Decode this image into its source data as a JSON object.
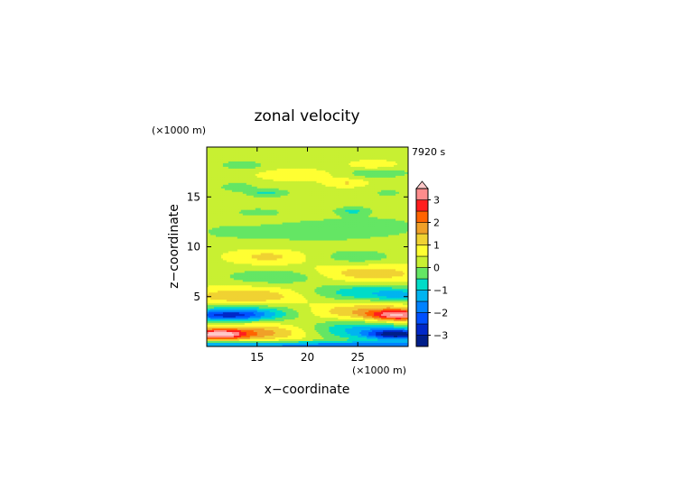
{
  "chart_data": {
    "type": "heatmap",
    "title": "zonal velocity",
    "time_label": "7920 s",
    "xlabel": "x−coordinate",
    "ylabel": "z−coordinate",
    "x_unit": "(×1000 m)",
    "y_unit": "(×1000 m)",
    "xlim": [
      10,
      30
    ],
    "ylim": [
      0,
      20
    ],
    "x_ticks": [
      15,
      20,
      25
    ],
    "y_ticks": [
      5,
      10,
      15
    ],
    "colorbar": {
      "min": -3.5,
      "max": 3.5,
      "tick_values": [
        3,
        2,
        1,
        0,
        -1,
        -2,
        -3
      ],
      "tick_labels": [
        "3",
        "2",
        "1",
        "0",
        "−1",
        "−2",
        "−3"
      ],
      "extend": "max",
      "levels": [
        {
          "from": -3.5,
          "to": -3.0,
          "color": "#001e8a"
        },
        {
          "from": -3.0,
          "to": -2.5,
          "color": "#0028c8"
        },
        {
          "from": -2.5,
          "to": -2.0,
          "color": "#0050ff"
        },
        {
          "from": -2.0,
          "to": -1.5,
          "color": "#0082ff"
        },
        {
          "from": -1.5,
          "to": -1.0,
          "color": "#00b4f0"
        },
        {
          "from": -1.0,
          "to": -0.5,
          "color": "#00dcc8"
        },
        {
          "from": -0.5,
          "to": 0.0,
          "color": "#64e664"
        },
        {
          "from": 0.0,
          "to": 0.5,
          "color": "#c8f032"
        },
        {
          "from": 0.5,
          "to": 1.0,
          "color": "#ffff32"
        },
        {
          "from": 1.0,
          "to": 1.5,
          "color": "#f0d232"
        },
        {
          "from": 1.5,
          "to": 2.0,
          "color": "#f0a028"
        },
        {
          "from": 2.0,
          "to": 2.5,
          "color": "#ff6400"
        },
        {
          "from": 2.5,
          "to": 3.0,
          "color": "#ff1e1e"
        },
        {
          "from": 3.0,
          "to": 3.5,
          "color": "#ff8c8c"
        },
        {
          "from": 3.5,
          "to": 4.0,
          "color": "#ffc8c8"
        }
      ]
    },
    "field": {
      "base_value": 0.35,
      "features": [
        {
          "x": 20,
          "z": 0.15,
          "sx": 30,
          "sz": 0.25,
          "amp": -2.0
        },
        {
          "x": 11,
          "z": 1.2,
          "sx": 2.0,
          "sz": 0.35,
          "amp": 2.8
        },
        {
          "x": 15,
          "z": 1.4,
          "sx": 4.5,
          "sz": 0.6,
          "amp": 1.4
        },
        {
          "x": 29,
          "z": 1.2,
          "sx": 2.0,
          "sz": 0.35,
          "amp": -3.2
        },
        {
          "x": 25,
          "z": 1.6,
          "sx": 4.0,
          "sz": 0.7,
          "amp": -1.6
        },
        {
          "x": 12,
          "z": 3.1,
          "sx": 3.0,
          "sz": 0.4,
          "amp": -2.4
        },
        {
          "x": 15,
          "z": 3.5,
          "sx": 5.0,
          "sz": 0.6,
          "amp": -1.2
        },
        {
          "x": 29,
          "z": 3.1,
          "sx": 2.0,
          "sz": 0.4,
          "amp": 2.6
        },
        {
          "x": 25,
          "z": 3.5,
          "sx": 5.0,
          "sz": 0.6,
          "amp": 1.3
        },
        {
          "x": 14,
          "z": 5.0,
          "sx": 4.0,
          "sz": 0.6,
          "amp": 1.2
        },
        {
          "x": 26,
          "z": 5.4,
          "sx": 4.0,
          "sz": 0.6,
          "amp": -1.3
        },
        {
          "x": 29.5,
          "z": 5.0,
          "sx": 1.5,
          "sz": 0.4,
          "amp": -1.0
        },
        {
          "x": 17,
          "z": 7.0,
          "sx": 3.5,
          "sz": 0.5,
          "amp": -0.9
        },
        {
          "x": 26,
          "z": 7.3,
          "sx": 4.0,
          "sz": 0.6,
          "amp": 1.0
        },
        {
          "x": 16,
          "z": 9.0,
          "sx": 2.5,
          "sz": 0.5,
          "amp": 0.8
        },
        {
          "x": 25,
          "z": 9.0,
          "sx": 2.5,
          "sz": 0.5,
          "amp": -0.7
        },
        {
          "x": 12,
          "z": 11.5,
          "sx": 3.0,
          "sz": 0.7,
          "amp": -0.4
        },
        {
          "x": 20,
          "z": 11.5,
          "sx": 4.0,
          "sz": 0.9,
          "amp": -0.5
        },
        {
          "x": 27,
          "z": 12.0,
          "sx": 4.0,
          "sz": 0.9,
          "amp": -0.5
        },
        {
          "x": 16,
          "z": 15.4,
          "sx": 1.5,
          "sz": 0.3,
          "amp": -1.0
        },
        {
          "x": 13,
          "z": 16.0,
          "sx": 1.2,
          "sz": 0.3,
          "amp": -0.8
        },
        {
          "x": 24,
          "z": 16.4,
          "sx": 1.4,
          "sz": 0.3,
          "amp": 0.7
        },
        {
          "x": 24.5,
          "z": 13.6,
          "sx": 1.2,
          "sz": 0.3,
          "amp": -0.9
        },
        {
          "x": 19,
          "z": 17.2,
          "sx": 2.5,
          "sz": 0.4,
          "amp": 0.6
        },
        {
          "x": 27,
          "z": 17.4,
          "sx": 2.5,
          "sz": 0.4,
          "amp": -0.7
        },
        {
          "x": 13.5,
          "z": 18.2,
          "sx": 1.5,
          "sz": 0.3,
          "amp": -0.8
        },
        {
          "x": 26.5,
          "z": 18.2,
          "sx": 1.5,
          "sz": 0.3,
          "amp": 0.7
        },
        {
          "x": 15,
          "z": 13.5,
          "sx": 3.0,
          "sz": 0.5,
          "amp": -0.4
        },
        {
          "x": 28,
          "z": 15.4,
          "sx": 2.0,
          "sz": 0.5,
          "amp": -0.4
        }
      ]
    }
  }
}
